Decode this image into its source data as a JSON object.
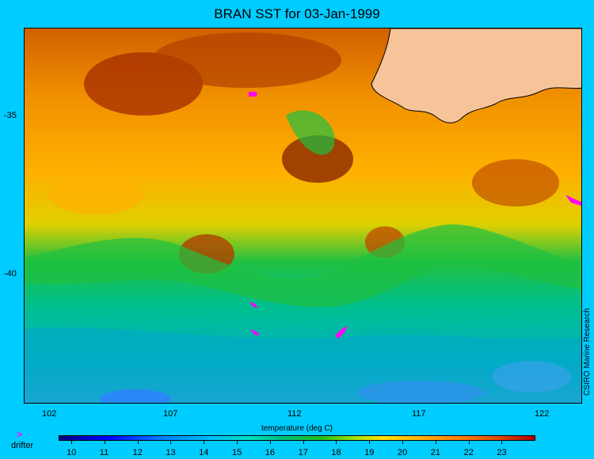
{
  "title": "BRAN SST for 03-Jan-1999",
  "map": {
    "lon_ticks": [
      "102",
      "107",
      "112",
      "117",
      "122"
    ],
    "lat_ticks": [
      "-35",
      "-40"
    ],
    "credit": "CSIRO Marine Research"
  },
  "colorbar": {
    "title": "temperature (deg C)",
    "labels": [
      "10",
      "11",
      "12",
      "13",
      "14",
      "15",
      "16",
      "17",
      "18",
      "19",
      "20",
      "21",
      "22",
      "23"
    ]
  },
  "legend": {
    "drifter_symbol": ">",
    "drifter_label": "drifter"
  },
  "colors": {
    "background": "#00ccff",
    "land": "#f7c49a",
    "drifter": "#ff00ff"
  }
}
